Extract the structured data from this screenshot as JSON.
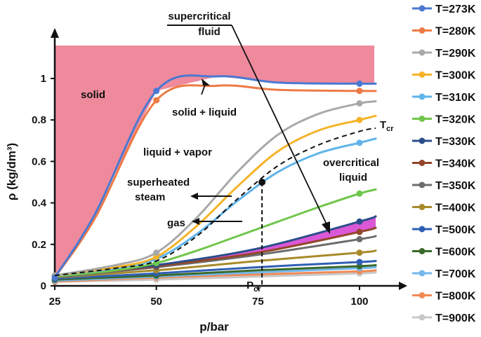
{
  "chart_data": {
    "type": "line",
    "xlabel": "p/bar",
    "ylabel": "ρ (kg/dm³)",
    "xlim": [
      25,
      104
    ],
    "ylim": [
      0,
      1.16
    ],
    "x_ticks": [
      "25",
      "50",
      "75",
      "100"
    ],
    "y_ticks": [
      "0",
      "0.2",
      "0.4",
      "0.6",
      "0.8",
      "1"
    ],
    "series": [
      {
        "name": "T=273K",
        "color": "#4a78d2",
        "x": [
          25,
          35,
          50,
          65,
          80,
          100,
          104
        ],
        "y": [
          0.04,
          0.35,
          0.94,
          1.01,
          0.98,
          0.975,
          0.975
        ]
      },
      {
        "name": "T=280K",
        "color": "#ee7a45",
        "x": [
          25,
          35,
          50,
          65,
          80,
          100,
          104
        ],
        "y": [
          0.04,
          0.33,
          0.895,
          0.965,
          0.945,
          0.94,
          0.94
        ]
      },
      {
        "name": "T=290K",
        "color": "#a9a9a9",
        "x": [
          25,
          40,
          50,
          60,
          70,
          80,
          90,
          100,
          104
        ],
        "y": [
          0.05,
          0.1,
          0.16,
          0.33,
          0.55,
          0.73,
          0.83,
          0.88,
          0.89
        ]
      },
      {
        "name": "T=300K",
        "color": "#f5b328",
        "x": [
          25,
          40,
          50,
          60,
          70,
          80,
          90,
          100,
          104
        ],
        "y": [
          0.05,
          0.09,
          0.14,
          0.29,
          0.48,
          0.65,
          0.75,
          0.8,
          0.82
        ]
      },
      {
        "name": "T=310K",
        "color": "#5fb4ea",
        "x": [
          25,
          40,
          50,
          60,
          70,
          80,
          90,
          100,
          104
        ],
        "y": [
          0.05,
          0.085,
          0.13,
          0.25,
          0.41,
          0.55,
          0.64,
          0.69,
          0.71
        ]
      },
      {
        "name": "T=320K",
        "color": "#6fc64a",
        "x": [
          25,
          40,
          50,
          60,
          70,
          80,
          90,
          100,
          104
        ],
        "y": [
          0.045,
          0.075,
          0.11,
          0.17,
          0.24,
          0.31,
          0.38,
          0.445,
          0.465
        ]
      },
      {
        "name": "T=330K",
        "color": "#2a4e8a",
        "x": [
          25,
          50,
          75,
          100,
          104
        ],
        "y": [
          0.045,
          0.1,
          0.18,
          0.31,
          0.335
        ]
      },
      {
        "name": "T=340K",
        "color": "#93462a",
        "x": [
          25,
          50,
          75,
          100,
          104
        ],
        "y": [
          0.045,
          0.095,
          0.16,
          0.26,
          0.28
        ]
      },
      {
        "name": "T=350K",
        "color": "#6d6d6d",
        "x": [
          25,
          50,
          75,
          100,
          104
        ],
        "y": [
          0.04,
          0.09,
          0.15,
          0.225,
          0.24
        ]
      },
      {
        "name": "T=400K",
        "color": "#a88a2a",
        "x": [
          25,
          50,
          75,
          100,
          104
        ],
        "y": [
          0.04,
          0.075,
          0.12,
          0.16,
          0.17
        ]
      },
      {
        "name": "T=500K",
        "color": "#2f5fb5",
        "x": [
          25,
          50,
          75,
          100,
          104
        ],
        "y": [
          0.035,
          0.06,
          0.09,
          0.115,
          0.12
        ]
      },
      {
        "name": "T=600K",
        "color": "#3a6a2a",
        "x": [
          25,
          50,
          75,
          100,
          104
        ],
        "y": [
          0.03,
          0.05,
          0.075,
          0.095,
          0.1
        ]
      },
      {
        "name": "T=700K",
        "color": "#74b8ec",
        "x": [
          25,
          50,
          75,
          100,
          104
        ],
        "y": [
          0.025,
          0.045,
          0.065,
          0.085,
          0.09
        ]
      },
      {
        "name": "T=800K",
        "color": "#f08a55",
        "x": [
          25,
          50,
          75,
          100,
          104
        ],
        "y": [
          0.02,
          0.04,
          0.055,
          0.07,
          0.075
        ]
      },
      {
        "name": "T=900K",
        "color": "#c8c8c8",
        "x": [
          25,
          50,
          75,
          100,
          104
        ],
        "y": [
          0.02,
          0.03,
          0.045,
          0.06,
          0.065
        ]
      }
    ],
    "critical_isotherm": {
      "label": "Tcr",
      "x": [
        25,
        40,
        50,
        60,
        70,
        80,
        90,
        100,
        104
      ],
      "y": [
        0.05,
        0.085,
        0.12,
        0.24,
        0.42,
        0.58,
        0.68,
        0.745,
        0.76
      ]
    },
    "critical_point": {
      "x": 76,
      "y": 0.5,
      "label": "Pcr"
    },
    "annotations": [
      "supercritical fluid",
      "solid",
      "solid + liquid",
      "liquid + vapor",
      "superheated steam",
      "gas",
      "overcritical liquid",
      "Tcr",
      "Pcr"
    ],
    "region_colors": {
      "solid": "#ee8a9c",
      "overcritical_band": "#d94fd5"
    },
    "legend_position": "right"
  }
}
